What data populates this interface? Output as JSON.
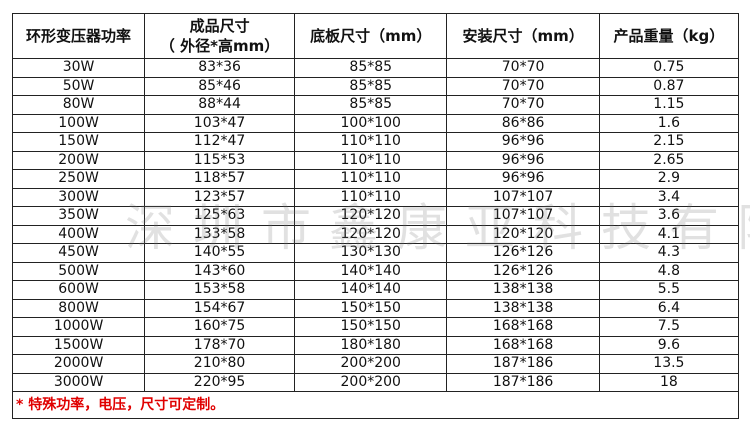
{
  "headers": [
    "环形变压器功率",
    "成品尺寸\n（ 外径*高mm）",
    "底板尺寸（mm）",
    "安装尺寸（mm）",
    "产品重量（kg）"
  ],
  "header_lines": {
    "h1a": "成品尺寸",
    "h1b": "（ 外径*高mm）"
  },
  "rows": [
    [
      "30W",
      "83*36",
      "85*85",
      "70*70",
      "0.75"
    ],
    [
      "50W",
      "85*46",
      "85*85",
      "70*70",
      "0.87"
    ],
    [
      "80W",
      "88*44",
      "85*85",
      "70*70",
      "1.15"
    ],
    [
      "100W",
      "103*47",
      "100*100",
      "86*86",
      "1.6"
    ],
    [
      "150W",
      "112*47",
      "110*110",
      "96*96",
      "2.15"
    ],
    [
      "200W",
      "115*53",
      "110*110",
      "96*96",
      "2.65"
    ],
    [
      "250W",
      "118*57",
      "110*110",
      "96*96",
      "2.9"
    ],
    [
      "300W",
      "123*57",
      "110*110",
      "107*107",
      "3.4"
    ],
    [
      "350W",
      "125*63",
      "120*120",
      "107*107",
      "3.6"
    ],
    [
      "400W",
      "133*58",
      "120*120",
      "120*120",
      "4.1"
    ],
    [
      "450W",
      "140*55",
      "130*130",
      "126*126",
      "4.3"
    ],
    [
      "500W",
      "143*60",
      "140*140",
      "126*126",
      "4.8"
    ],
    [
      "600W",
      "153*58",
      "140*140",
      "138*138",
      "5.5"
    ],
    [
      "800W",
      "154*67",
      "150*150",
      "138*138",
      "6.4"
    ],
    [
      "1000W",
      "160*75",
      "150*150",
      "168*168",
      "7.5"
    ],
    [
      "1500W",
      "178*70",
      "180*180",
      "168*168",
      "9.6"
    ],
    [
      "2000W",
      "210*80",
      "200*200",
      "187*186",
      "13.5"
    ],
    [
      "3000W",
      "220*95",
      "200*200",
      "187*186",
      "18"
    ]
  ],
  "note": "* 特殊功率，电压，尺寸可定制。",
  "watermark": "深圳市鑫康亚科技有限公司",
  "colors": {
    "note": "#e00000",
    "border": "#222222"
  }
}
